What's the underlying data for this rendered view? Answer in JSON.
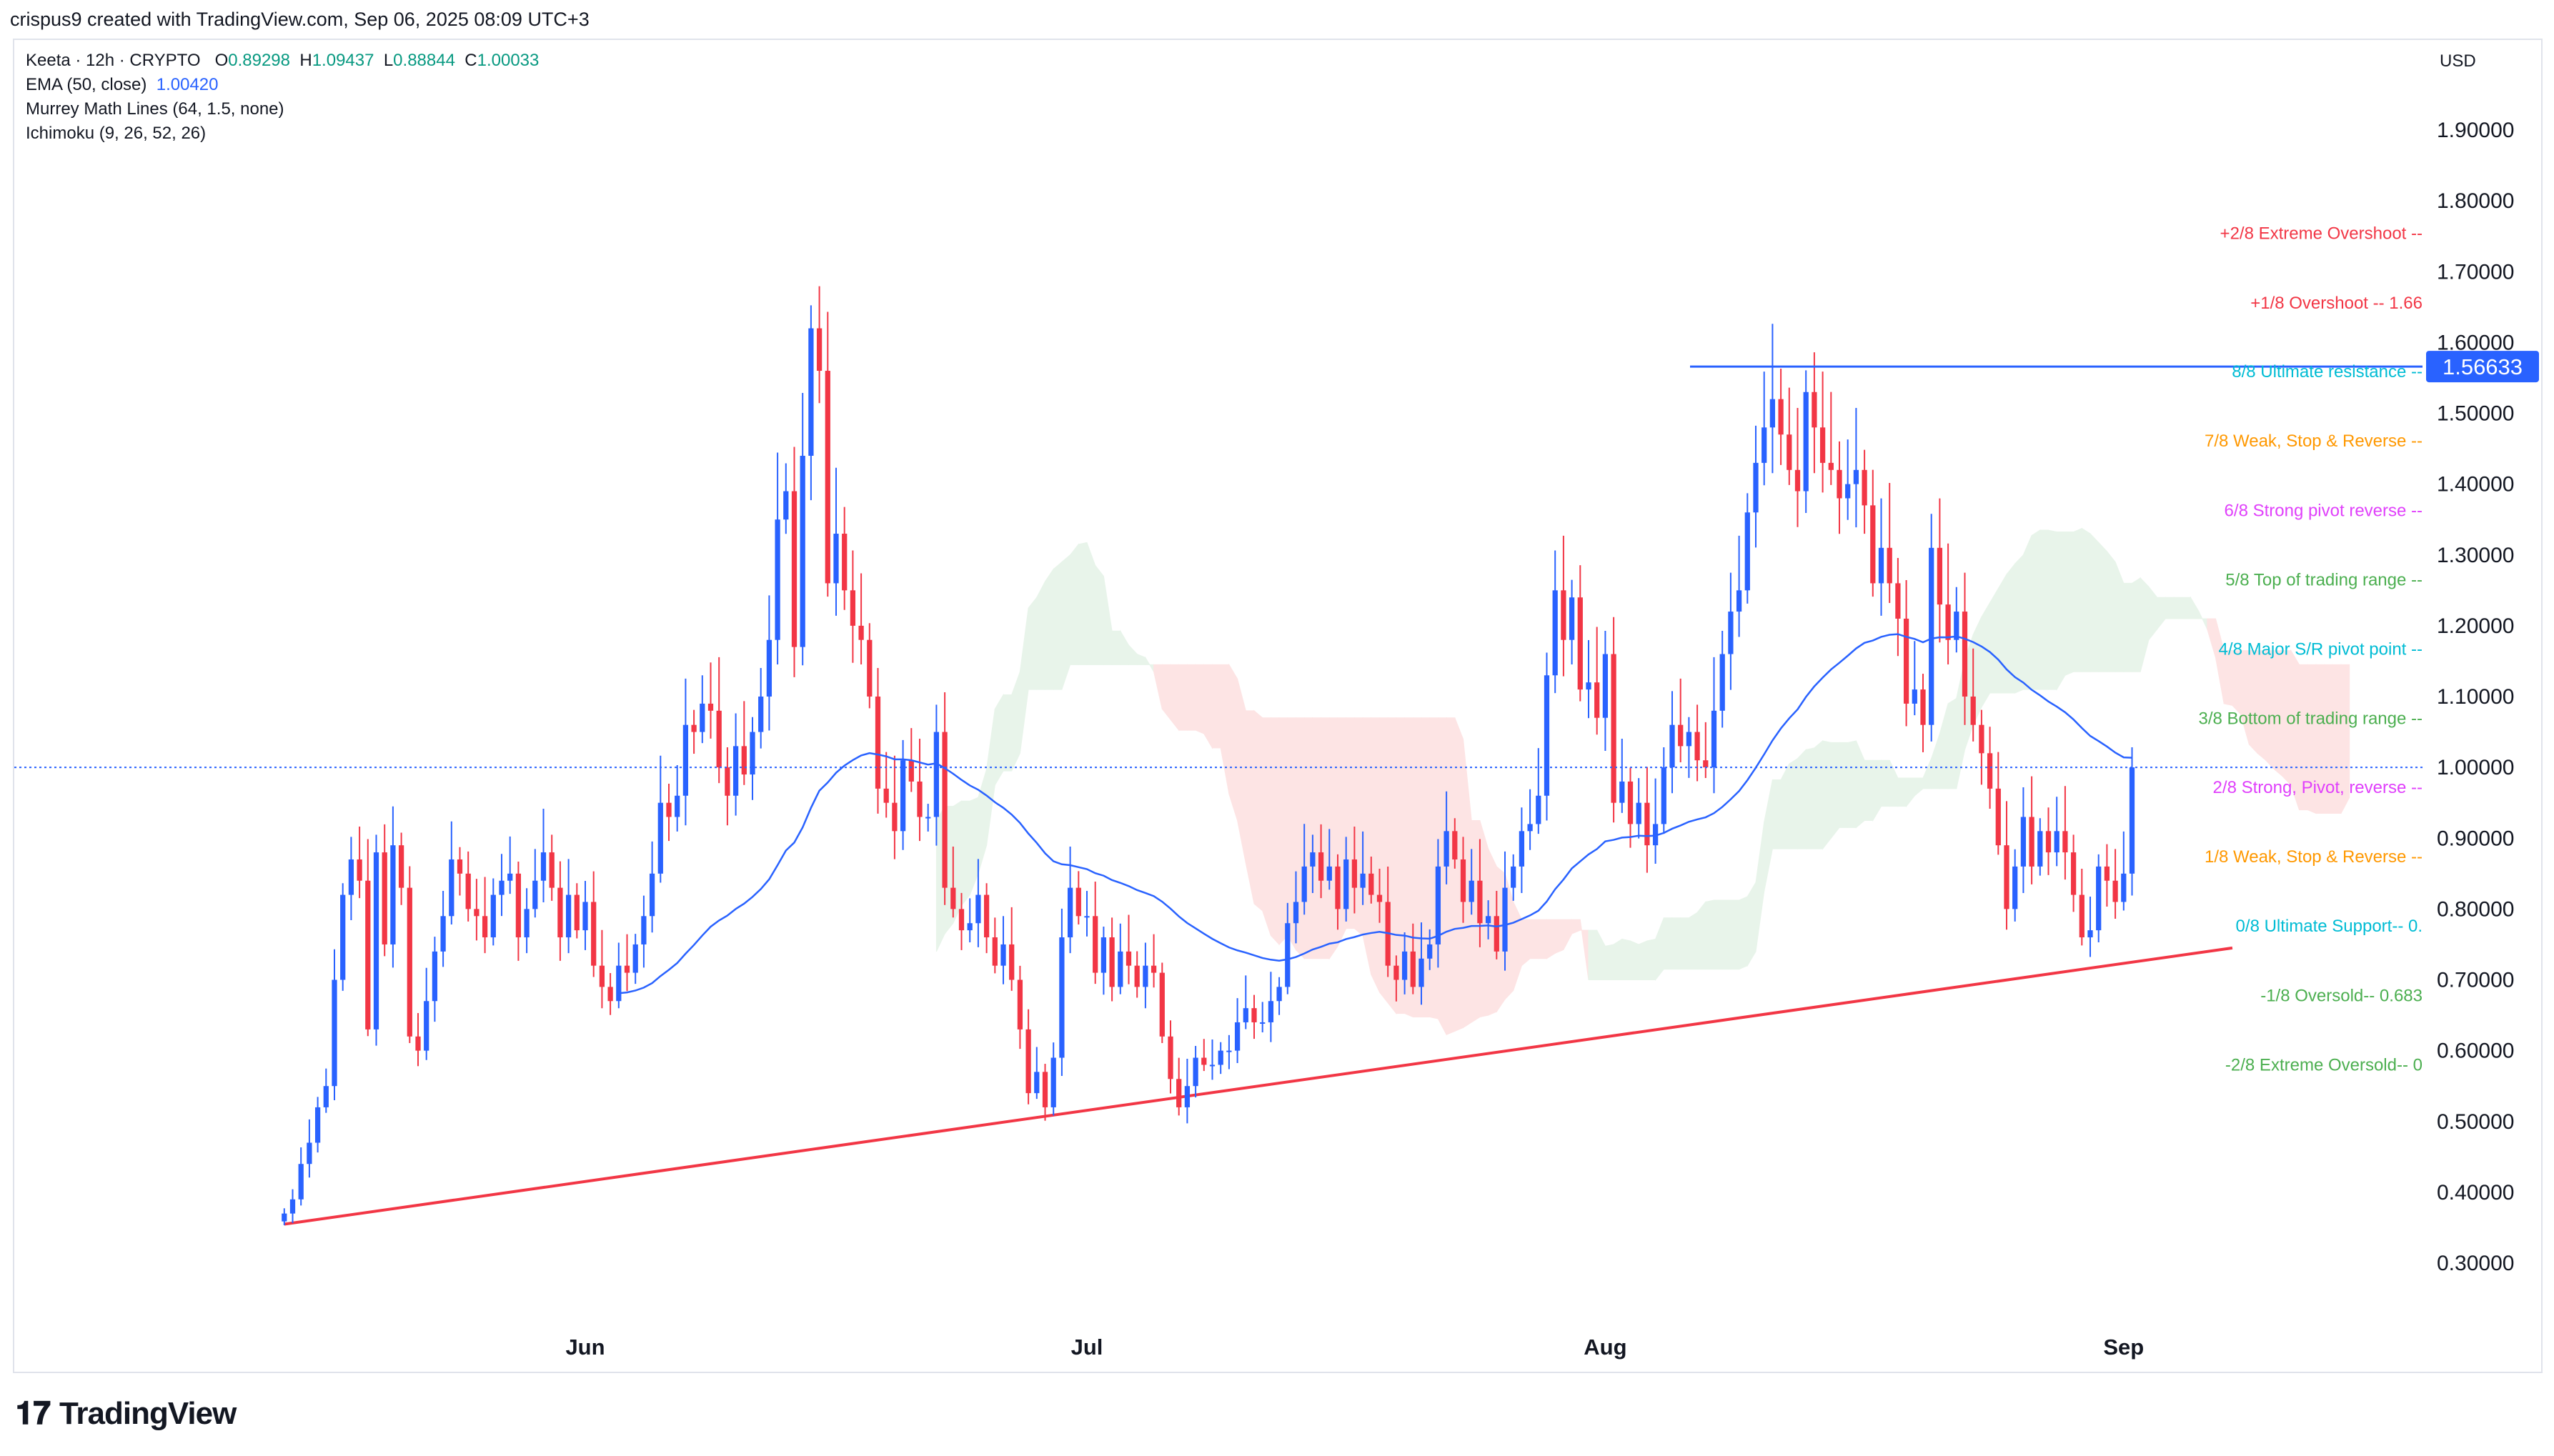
{
  "header": {
    "credit": "crispus9 created with TradingView.com, Sep 06, 2025 08:09 UTC+3"
  },
  "legend": {
    "symbol": "Keeta · 12h · CRYPTO",
    "ohlc": {
      "o_label": "O",
      "o": "0.89298",
      "h_label": "H",
      "h": "1.09437",
      "l_label": "L",
      "l": "0.88844",
      "c_label": "C",
      "c": "1.00033"
    },
    "ema_label": "EMA (50, close)",
    "ema_value": "1.00420",
    "murrey_label": "Murrey Math Lines (64, 1.5, none)",
    "ichimoku_label": "Ichimoku (9, 26, 52, 26)"
  },
  "currency": "USD",
  "brand": {
    "logo_text": "TradingView",
    "logo_mark": "𝟏𝟕"
  },
  "colors": {
    "up": "#2962ff",
    "down": "#f23645",
    "ema": "#2962ff",
    "trendline": "#f23645",
    "resistance": "#2962ff",
    "cloud_bull": "#e8f4ea",
    "cloud_bear": "#fde4e4"
  },
  "chart_data": {
    "type": "candlestick",
    "yaxis": {
      "ticks": [
        "1.90000",
        "1.80000",
        "1.70000",
        "1.60000",
        "1.50000",
        "1.40000",
        "1.30000",
        "1.20000",
        "1.10000",
        "1.00000",
        "0.90000",
        "0.80000",
        "0.70000",
        "0.60000",
        "0.50000",
        "0.40000",
        "0.30000"
      ],
      "range": [
        0.22,
        1.985
      ]
    },
    "xaxis": {
      "labels": [
        {
          "label": "Jun",
          "date": "2025-06-01"
        },
        {
          "label": "Jul",
          "date": "2025-07-01"
        },
        {
          "label": "Aug",
          "date": "2025-08-01"
        },
        {
          "label": "Sep",
          "date": "2025-09-01"
        }
      ]
    },
    "price_tag": "1.56633",
    "current_price": 1.0,
    "resistance_level": 1.566,
    "murrey_lines": [
      {
        "label": "+2/8 Extreme Overshoot --",
        "value": 1.755,
        "color": "#f23645"
      },
      {
        "label": "+1/8 Overshoot --  1.66",
        "value": 1.657,
        "color": "#f23645"
      },
      {
        "label": "8/8 Ultimate resistance --",
        "value": 1.56,
        "color": "#00bcd4"
      },
      {
        "label": "7/8 Weak, Stop & Reverse --",
        "value": 1.462,
        "color": "#ff9800"
      },
      {
        "label": "6/8 Strong pivot reverse --",
        "value": 1.364,
        "color": "#e040fb"
      },
      {
        "label": "5/8 Top of trading range --",
        "value": 1.266,
        "color": "#4caf50"
      },
      {
        "label": "4/8 Major S/R pivot point --",
        "value": 1.168,
        "color": "#00bcd4"
      },
      {
        "label": "3/8 Bottom of trading range --",
        "value": 1.07,
        "color": "#4caf50"
      },
      {
        "label": "2/8 Strong, Pivot, reverse --",
        "value": 0.973,
        "color": "#e040fb"
      },
      {
        "label": "1/8 Weak, Stop & Reverse --",
        "value": 0.875,
        "color": "#ff9800"
      },
      {
        "label": "0/8 Ultimate Support--  0.",
        "value": 0.777,
        "color": "#00bcd4"
      },
      {
        "label": "-1/8 Oversold--  0.683",
        "value": 0.679,
        "color": "#4caf50"
      },
      {
        "label": "-2/8 Extreme Oversold--  0",
        "value": 0.581,
        "color": "#4caf50"
      }
    ],
    "trendline": [
      {
        "date": "2025-05-14T00:00",
        "value": 0.355
      },
      {
        "date": "2025-09-07T12:00",
        "value": 0.745
      }
    ],
    "candles_start": "2025-05-14T00:00",
    "candle_interval_hours": 12,
    "close": [
      0.37,
      0.39,
      0.44,
      0.47,
      0.52,
      0.55,
      0.7,
      0.82,
      0.87,
      0.84,
      0.63,
      0.88,
      0.75,
      0.89,
      0.83,
      0.62,
      0.6,
      0.67,
      0.74,
      0.79,
      0.87,
      0.85,
      0.8,
      0.79,
      0.76,
      0.82,
      0.84,
      0.85,
      0.76,
      0.8,
      0.84,
      0.88,
      0.83,
      0.76,
      0.82,
      0.77,
      0.81,
      0.72,
      0.69,
      0.67,
      0.72,
      0.71,
      0.75,
      0.79,
      0.85,
      0.95,
      0.93,
      0.96,
      1.06,
      1.05,
      1.09,
      1.08,
      1.0,
      0.96,
      1.03,
      0.99,
      1.05,
      1.1,
      1.18,
      1.35,
      1.39,
      1.17,
      1.44,
      1.62,
      1.56,
      1.26,
      1.33,
      1.25,
      1.2,
      1.18,
      1.1,
      0.97,
      0.95,
      0.91,
      1.01,
      0.98,
      0.93,
      0.93,
      1.05,
      0.83,
      0.8,
      0.77,
      0.78,
      0.82,
      0.76,
      0.72,
      0.75,
      0.7,
      0.63,
      0.54,
      0.57,
      0.52,
      0.59,
      0.76,
      0.83,
      0.79,
      0.79,
      0.71,
      0.76,
      0.69,
      0.74,
      0.72,
      0.69,
      0.72,
      0.71,
      0.62,
      0.56,
      0.52,
      0.55,
      0.59,
      0.58,
      0.58,
      0.6,
      0.6,
      0.64,
      0.66,
      0.64,
      0.64,
      0.67,
      0.69,
      0.78,
      0.81,
      0.86,
      0.88,
      0.84,
      0.86,
      0.8,
      0.87,
      0.83,
      0.85,
      0.82,
      0.81,
      0.72,
      0.7,
      0.74,
      0.69,
      0.73,
      0.75,
      0.86,
      0.91,
      0.87,
      0.81,
      0.84,
      0.78,
      0.79,
      0.74,
      0.83,
      0.86,
      0.91,
      0.92,
      0.96,
      1.13,
      1.25,
      1.18,
      1.24,
      1.11,
      1.12,
      1.07,
      1.16,
      0.95,
      0.98,
      0.92,
      0.95,
      0.89,
      0.92,
      1.0,
      1.06,
      1.03,
      1.05,
      1.01,
      1.0,
      1.08,
      1.16,
      1.22,
      1.25,
      1.36,
      1.43,
      1.48,
      1.52,
      1.47,
      1.42,
      1.39,
      1.53,
      1.48,
      1.43,
      1.42,
      1.38,
      1.4,
      1.42,
      1.37,
      1.26,
      1.31,
      1.26,
      1.21,
      1.09,
      1.11,
      1.06,
      1.31,
      1.23,
      1.18,
      1.22,
      1.1,
      1.06,
      1.02,
      0.97,
      0.89,
      0.8,
      0.86,
      0.93,
      0.86,
      0.91,
      0.88,
      0.91,
      0.88,
      0.82,
      0.76,
      0.77,
      0.86,
      0.84,
      0.81,
      0.85,
      1.0
    ],
    "ema50_note": "EMA (50, close) overlay",
    "ichimoku_note": "Ichimoku cloud overlay"
  }
}
